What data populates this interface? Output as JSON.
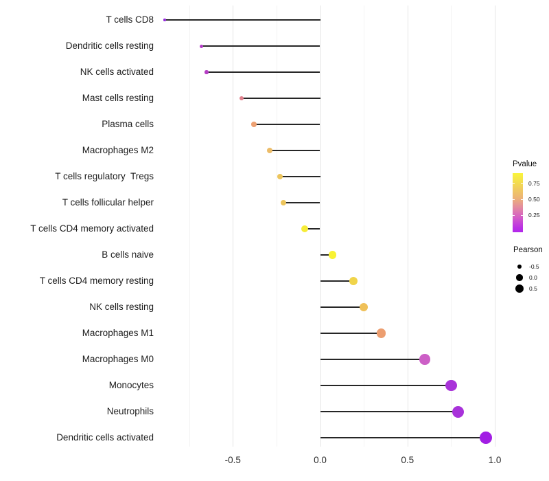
{
  "chart_data": {
    "type": "scatter",
    "variant": "lollipop",
    "title": "",
    "xlabel": "",
    "ylabel": "",
    "xlim": [
      -0.92,
      1.07
    ],
    "grid": "on",
    "x_axis": {
      "ticks": [
        -0.5,
        0.0,
        0.5,
        1.0
      ],
      "tick_labels": [
        "-0.5",
        "0.0",
        "0.5",
        "1.0"
      ],
      "minor_ticks": [
        -0.75,
        -0.25,
        0.25,
        0.75
      ]
    },
    "points": [
      {
        "label": "T cells CD8",
        "pearson": -0.89,
        "color": "#962cdc"
      },
      {
        "label": "Dendritic cells resting",
        "pearson": -0.68,
        "color": "#b43cc6"
      },
      {
        "label": "NK cells activated",
        "pearson": -0.65,
        "color": "#b53ec4"
      },
      {
        "label": "Mast cells resting",
        "pearson": -0.45,
        "color": "#e0808c"
      },
      {
        "label": "Plasma cells",
        "pearson": -0.38,
        "color": "#eda173"
      },
      {
        "label": "Macrophages M2",
        "pearson": -0.29,
        "color": "#ecbc68"
      },
      {
        "label": "T cells regulatory  Tregs",
        "pearson": -0.23,
        "color": "#edc55c"
      },
      {
        "label": "T cells follicular helper",
        "pearson": -0.21,
        "color": "#edc55c"
      },
      {
        "label": "T cells CD4 memory activated",
        "pearson": -0.09,
        "color": "#f6ec38"
      },
      {
        "label": "B cells naive",
        "pearson": 0.07,
        "color": "#f8f233"
      },
      {
        "label": "T cells CD4 memory resting",
        "pearson": 0.19,
        "color": "#f0d44a"
      },
      {
        "label": "NK cells resting",
        "pearson": 0.25,
        "color": "#efc058"
      },
      {
        "label": "Macrophages M1",
        "pearson": 0.35,
        "color": "#ec9e70"
      },
      {
        "label": "Macrophages M0",
        "pearson": 0.6,
        "color": "#cc5fc6"
      },
      {
        "label": "Monocytes",
        "pearson": 0.75,
        "color": "#a933d9"
      },
      {
        "label": "Neutrophils",
        "pearson": 0.79,
        "color": "#a832da"
      },
      {
        "label": "Dendritic cells activated",
        "pearson": 0.95,
        "color": "#a21ee4"
      }
    ],
    "legend_pvalue": {
      "title": "Pvalue",
      "tick_labels": [
        "0.75",
        "0.50",
        "0.25"
      ],
      "gradient_top_color": "#f9f53b",
      "gradient_mid_color": "#e38ba0",
      "gradient_bottom_color": "#b228eb",
      "position": "right"
    },
    "legend_pearson": {
      "title": "Pearson",
      "items": [
        {
          "label": "-0.5",
          "value": -0.5
        },
        {
          "label": "0.0",
          "value": 0.0
        },
        {
          "label": "0.5",
          "value": 0.5
        }
      ],
      "dot_color": "#000000",
      "position": "right"
    }
  }
}
